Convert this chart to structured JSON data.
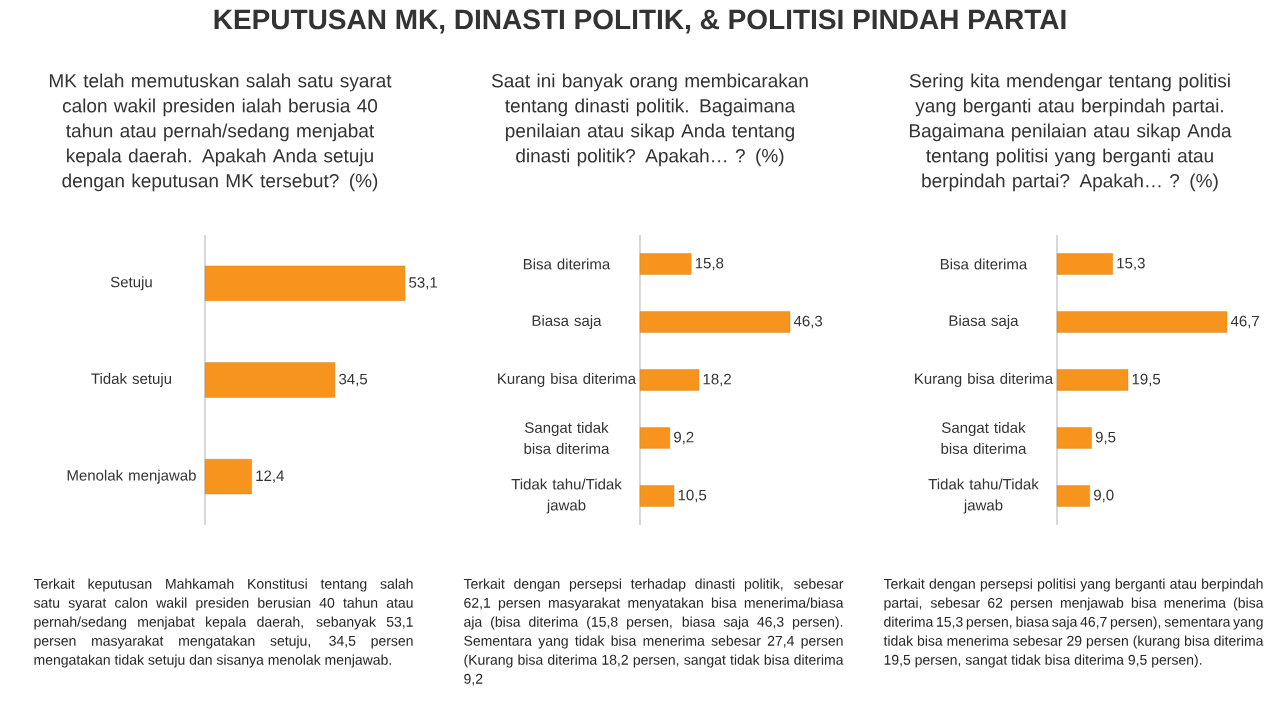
{
  "chart_data": [
    {
      "type": "bar",
      "orientation": "horizontal",
      "title": "KEPUTUSAN MK, DINASTI POLITIK, & POLITISI PINDAH PARTAI",
      "subtitle": "MK telah memutuskan salah satu syarat calon wakil presiden ialah berusia 40 tahun atau pernah/sedang menjabat kepala daerah. Apakah Anda setuju dengan keputusan MK tersebut? (%)",
      "categories": [
        "Setuju",
        "Tidak setuju",
        "Menolak menjawab"
      ],
      "values": [
        53.1,
        34.5,
        12.4
      ],
      "value_labels": [
        "53,1",
        "34,5",
        "12,4"
      ],
      "color": "#f7941d",
      "annotations": [
        "Terkait keputusan Mahkamah Konstitusi tentang salah satu syarat calon wakil presiden berusian 40 tahun atau pernah/sedang menjabat kepala daerah, sebanyak 53,1 persen masyarakat mengatakan setuju, 34,5 persen mengatakan tidak setuju dan sisanya menolak menjawab."
      ]
    },
    {
      "type": "bar",
      "orientation": "horizontal",
      "subtitle": "Saat ini banyak orang membicarakan tentang dinasti politik. Bagaimana penilaian atau sikap Anda tentang dinasti politik? Apakah… ? (%)",
      "categories": [
        "Bisa diterima",
        "Biasa saja",
        "Kurang bisa diterima",
        "Sangat tidak bisa diterima",
        "Tidak tahu/Tidak jawab"
      ],
      "values": [
        15.8,
        46.3,
        18.2,
        9.2,
        10.5
      ],
      "value_labels": [
        "15,8",
        "46,3",
        "18,2",
        "9,2",
        "10,5"
      ],
      "color": "#f7941d",
      "annotations": [
        "Terkait dengan persepsi terhadap dinasti politik, sebesar 62,1 persen masyarakat menyatakan bisa menerima/biasa aja (bisa diterima (15,8 persen, biasa saja 46,3 persen). Sementara yang tidak bisa menerima sebesar 27,4 persen (Kurang bisa diterima 18,2 persen, sangat tidak bisa diterima 9,2"
      ]
    },
    {
      "type": "bar",
      "orientation": "horizontal",
      "subtitle": "Sering kita mendengar tentang politisi yang berganti atau berpindah partai. Bagaimana penilaian atau sikap Anda tentang politisi yang berganti atau berpindah partai? Apakah… ? (%)",
      "categories": [
        "Bisa diterima",
        "Biasa saja",
        "Kurang bisa diterima",
        "Sangat tidak bisa diterima",
        "Tidak tahu/Tidak jawab"
      ],
      "values": [
        15.3,
        46.7,
        19.5,
        9.5,
        9.0
      ],
      "value_labels": [
        "15,3",
        "46,7",
        "19,5",
        "9,5",
        "9,0"
      ],
      "color": "#f7941d",
      "annotations": [
        "Terkait dengan persepsi politisi yang berganti atau berpindah partai, sebesar 62 persen menjawab bisa menerima (bisa diterima 15,3 persen, biasa saja 46,7 persen), sementara yang tidak bisa menerima sebesar 29 persen (kurang bisa diterima 19,5 persen, sangat tidak bisa diterima 9,5 persen)."
      ]
    }
  ]
}
